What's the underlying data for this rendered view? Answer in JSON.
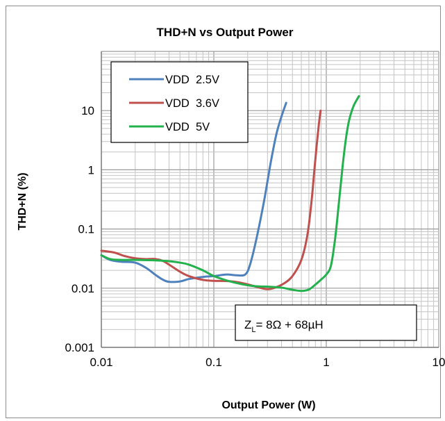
{
  "chart_data": {
    "type": "line",
    "title": "THD+N vs Output Power",
    "xlabel": "Output Power (W)",
    "ylabel": "THD+N (%)",
    "xscale": "log",
    "yscale": "log",
    "xlim": [
      0.01,
      10
    ],
    "ylim": [
      0.001,
      100
    ],
    "x_tick_labels": [
      "0.01",
      "0.1",
      "1",
      "10"
    ],
    "y_tick_labels": [
      "0.001",
      "0.01",
      "0.1",
      "1",
      "10"
    ],
    "grid": true,
    "legend_position": "top-left",
    "annotation": {
      "prefix": "Z",
      "sub": "L",
      "suffix": "= 8Ω + 68µH"
    },
    "series": [
      {
        "name": "VDD  2.5V",
        "color": "#4f81bd",
        "points": [
          [
            0.01,
            0.036
          ],
          [
            0.012,
            0.03
          ],
          [
            0.015,
            0.028
          ],
          [
            0.02,
            0.027
          ],
          [
            0.025,
            0.022
          ],
          [
            0.03,
            0.017
          ],
          [
            0.035,
            0.014
          ],
          [
            0.04,
            0.0128
          ],
          [
            0.05,
            0.013
          ],
          [
            0.06,
            0.0143
          ],
          [
            0.08,
            0.0155
          ],
          [
            0.1,
            0.016
          ],
          [
            0.13,
            0.017
          ],
          [
            0.16,
            0.0165
          ],
          [
            0.19,
            0.017
          ],
          [
            0.21,
            0.025
          ],
          [
            0.24,
            0.07
          ],
          [
            0.28,
            0.3
          ],
          [
            0.32,
            1.3
          ],
          [
            0.36,
            4.0
          ],
          [
            0.4,
            8.0
          ],
          [
            0.44,
            13.5
          ]
        ]
      },
      {
        "name": "VDD  3.6V",
        "color": "#c0504d",
        "points": [
          [
            0.01,
            0.043
          ],
          [
            0.013,
            0.04
          ],
          [
            0.016,
            0.035
          ],
          [
            0.02,
            0.032
          ],
          [
            0.025,
            0.031
          ],
          [
            0.03,
            0.0312
          ],
          [
            0.035,
            0.029
          ],
          [
            0.04,
            0.025
          ],
          [
            0.05,
            0.019
          ],
          [
            0.06,
            0.016
          ],
          [
            0.08,
            0.0138
          ],
          [
            0.1,
            0.0133
          ],
          [
            0.13,
            0.0132
          ],
          [
            0.16,
            0.0127
          ],
          [
            0.2,
            0.0116
          ],
          [
            0.25,
            0.0103
          ],
          [
            0.3,
            0.0096
          ],
          [
            0.35,
            0.0102
          ],
          [
            0.42,
            0.012
          ],
          [
            0.5,
            0.016
          ],
          [
            0.6,
            0.03
          ],
          [
            0.68,
            0.08
          ],
          [
            0.74,
            0.3
          ],
          [
            0.78,
            0.9
          ],
          [
            0.82,
            2.5
          ],
          [
            0.86,
            6.0
          ],
          [
            0.89,
            10.0
          ]
        ]
      },
      {
        "name": "VDD  5V",
        "color": "#22b14c",
        "points": [
          [
            0.01,
            0.036
          ],
          [
            0.012,
            0.031
          ],
          [
            0.015,
            0.03
          ],
          [
            0.02,
            0.03
          ],
          [
            0.03,
            0.0295
          ],
          [
            0.04,
            0.0285
          ],
          [
            0.05,
            0.027
          ],
          [
            0.06,
            0.025
          ],
          [
            0.08,
            0.02
          ],
          [
            0.1,
            0.016
          ],
          [
            0.13,
            0.0135
          ],
          [
            0.16,
            0.0122
          ],
          [
            0.2,
            0.0112
          ],
          [
            0.25,
            0.0107
          ],
          [
            0.3,
            0.0106
          ],
          [
            0.4,
            0.0102
          ],
          [
            0.5,
            0.0094
          ],
          [
            0.6,
            0.009
          ],
          [
            0.7,
            0.0095
          ],
          [
            0.8,
            0.0115
          ],
          [
            0.9,
            0.014
          ],
          [
            1.0,
            0.017
          ],
          [
            1.1,
            0.024
          ],
          [
            1.2,
            0.07
          ],
          [
            1.3,
            0.3
          ],
          [
            1.4,
            1.2
          ],
          [
            1.5,
            3.5
          ],
          [
            1.6,
            7.0
          ],
          [
            1.75,
            12.0
          ],
          [
            1.95,
            17.5
          ]
        ]
      }
    ]
  }
}
